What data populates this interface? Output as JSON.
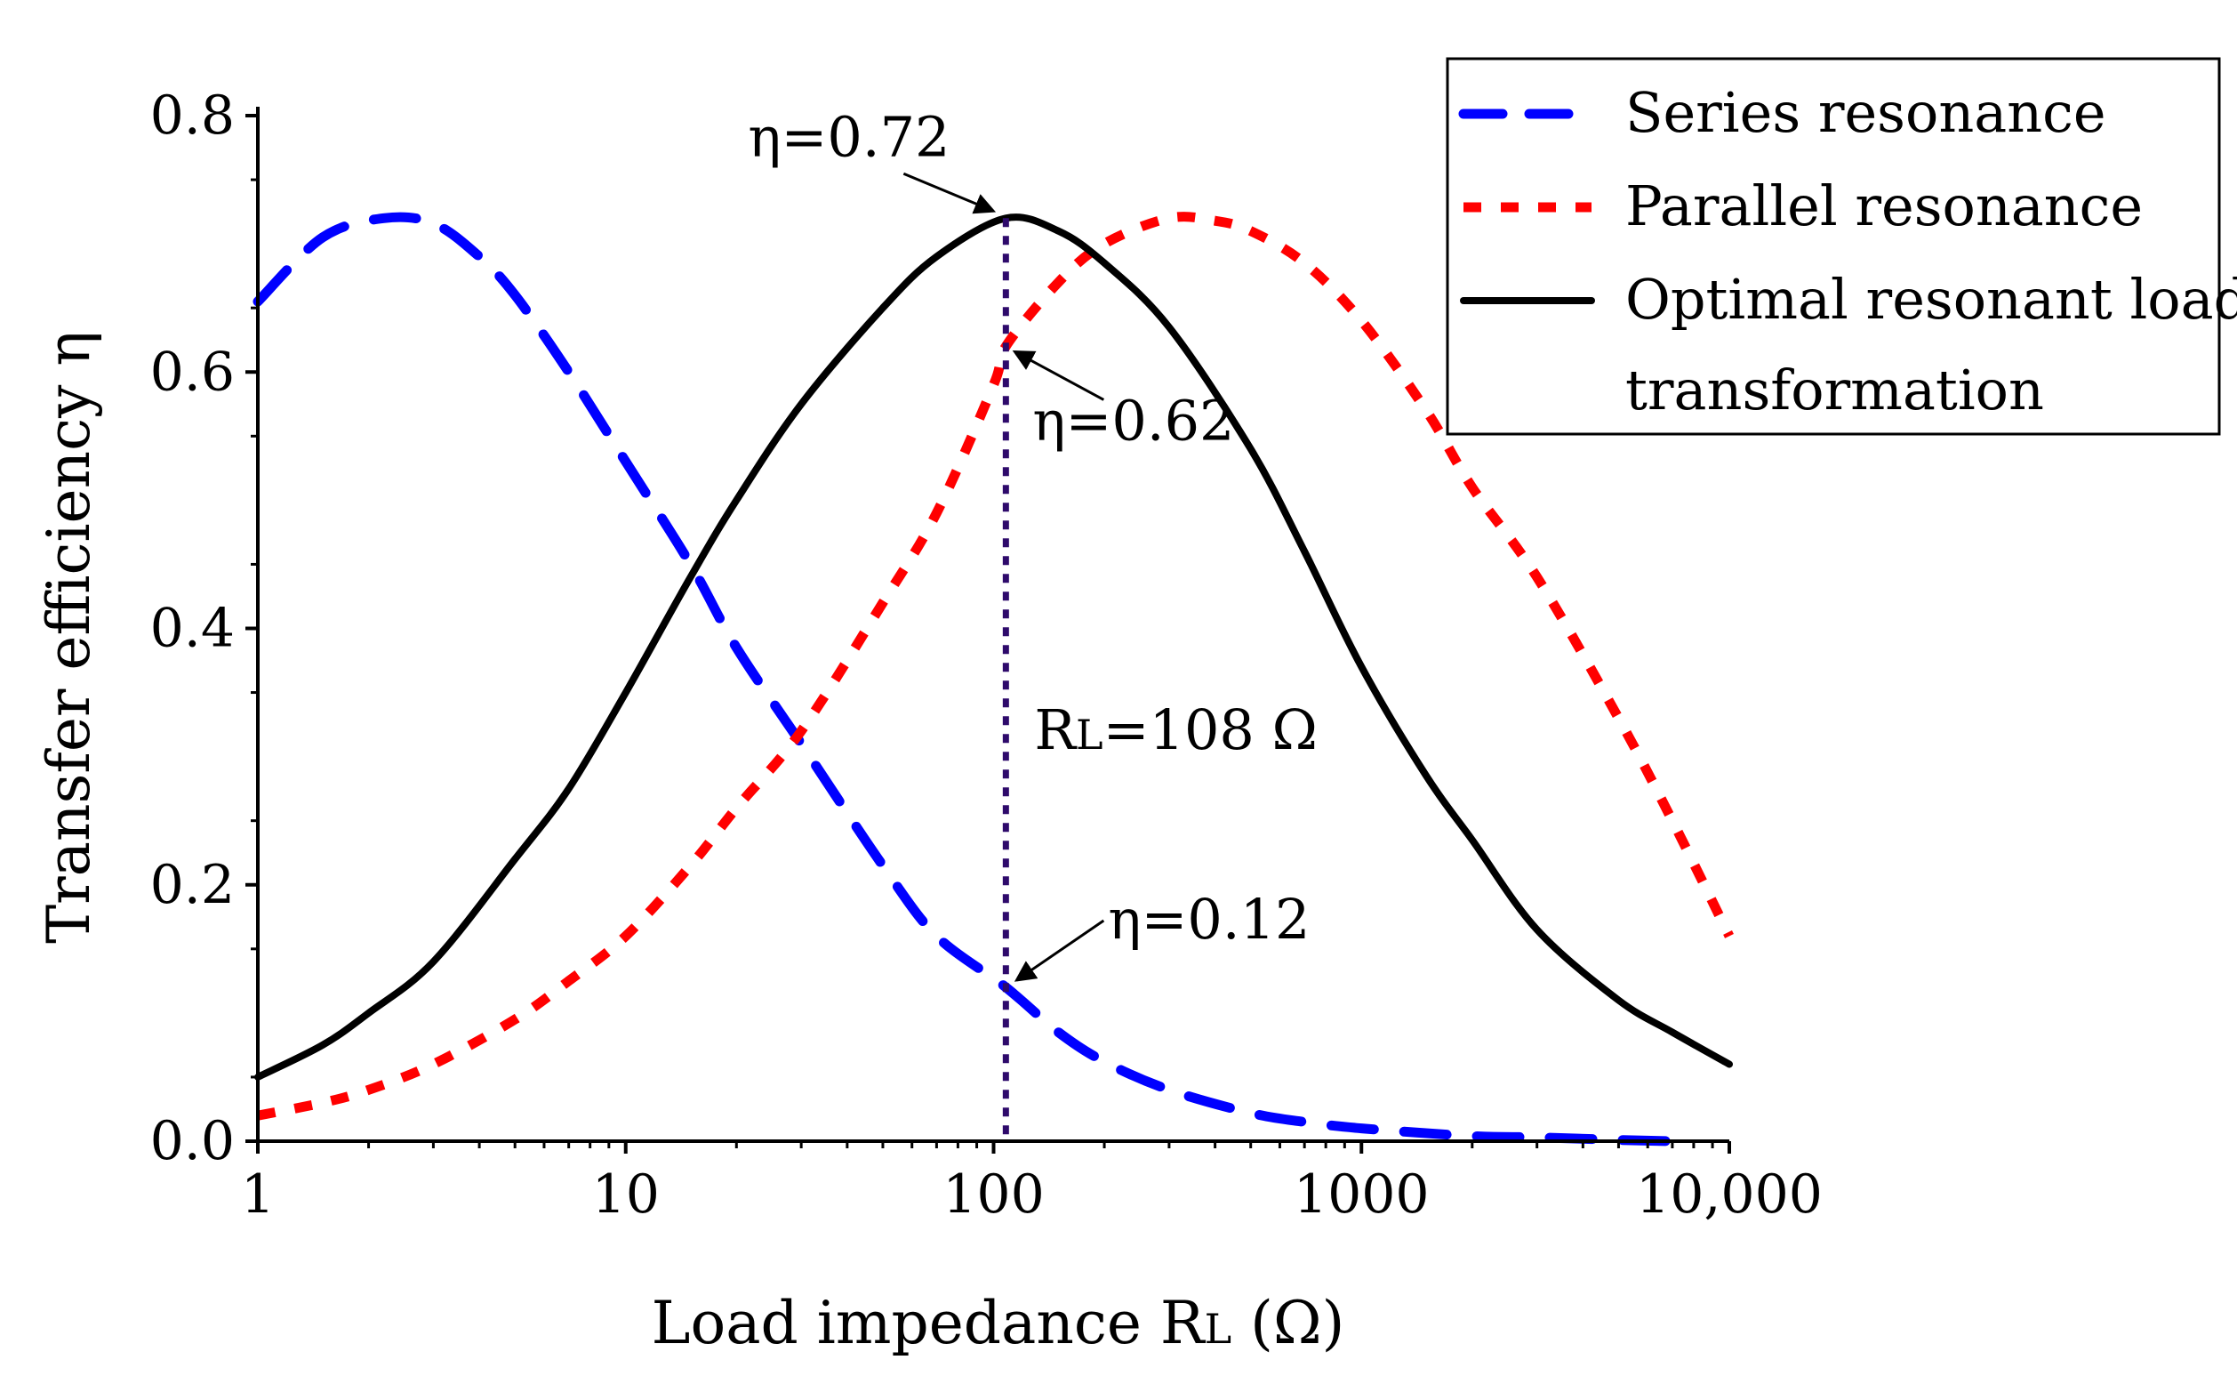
{
  "chart_data": {
    "type": "line",
    "title": "",
    "xlabel": {
      "main": "Load impedance R",
      "sub": "L",
      "tail": " (Ω)"
    },
    "ylabel": "Transfer efficiency η",
    "x_scale": "log",
    "xlim": [
      1,
      10000
    ],
    "ylim": [
      0,
      0.8
    ],
    "x_ticks": [
      {
        "value": 1,
        "label": "1"
      },
      {
        "value": 10,
        "label": "10"
      },
      {
        "value": 100,
        "label": "100"
      },
      {
        "value": 1000,
        "label": "1000"
      },
      {
        "value": 10000,
        "label": "10,000"
      }
    ],
    "y_ticks": [
      {
        "value": 0,
        "label": "0.0"
      },
      {
        "value": 0.2,
        "label": "0.2"
      },
      {
        "value": 0.4,
        "label": "0.4"
      },
      {
        "value": 0.6,
        "label": "0.6"
      },
      {
        "value": 0.8,
        "label": "0.8"
      }
    ],
    "grid": false,
    "legend_position": "top-right",
    "series": [
      {
        "name": "Series resonance",
        "color": "#0000ff",
        "style": "dashed",
        "x": [
          1,
          1.5,
          2.2,
          3,
          4,
          5,
          7,
          10,
          15,
          20,
          30,
          50,
          70,
          108,
          150,
          200,
          300,
          500,
          700,
          1000,
          2000,
          3000,
          5000,
          7000
        ],
        "y": [
          0.655,
          0.705,
          0.72,
          0.716,
          0.69,
          0.66,
          0.6,
          0.53,
          0.45,
          0.385,
          0.31,
          0.215,
          0.16,
          0.12,
          0.085,
          0.062,
          0.04,
          0.022,
          0.015,
          0.01,
          0.004,
          0.003,
          0.001,
          0.0
        ]
      },
      {
        "name": "Parallel resonance",
        "color": "#ff0000",
        "style": "dotted",
        "x": [
          1,
          1.5,
          2,
          3,
          5,
          7,
          10,
          15,
          20,
          30,
          50,
          70,
          100,
          108,
          150,
          200,
          300,
          400,
          500,
          700,
          1000,
          1500,
          2000,
          3000,
          5000,
          7000,
          10000
        ],
        "y": [
          0.02,
          0.03,
          0.04,
          0.06,
          0.095,
          0.125,
          0.16,
          0.215,
          0.26,
          0.32,
          0.42,
          0.49,
          0.59,
          0.62,
          0.67,
          0.7,
          0.72,
          0.718,
          0.71,
          0.685,
          0.64,
          0.57,
          0.51,
          0.44,
          0.33,
          0.25,
          0.16
        ]
      },
      {
        "name": "Optimal resonant load transformation",
        "name_lines": [
          "Optimal resonant load",
          "transformation"
        ],
        "color": "#000000",
        "style": "solid",
        "x": [
          1,
          1.5,
          2,
          3,
          5,
          7,
          10,
          15,
          20,
          30,
          50,
          70,
          108,
          150,
          200,
          300,
          500,
          700,
          1000,
          1500,
          2000,
          3000,
          5000,
          7000,
          10000
        ],
        "y": [
          0.05,
          0.075,
          0.1,
          0.14,
          0.22,
          0.275,
          0.35,
          0.44,
          0.5,
          0.575,
          0.65,
          0.69,
          0.72,
          0.71,
          0.685,
          0.635,
          0.54,
          0.46,
          0.37,
          0.285,
          0.235,
          0.165,
          0.11,
          0.085,
          0.06
        ]
      }
    ],
    "vertical_line": {
      "x": 108,
      "color": "#2e0a6b",
      "style": "dotted",
      "label_main": "R",
      "label_sub": "L",
      "label_tail": "=108 Ω",
      "label_y": 0.32
    },
    "annotations": [
      {
        "text": "η=0.72",
        "x": 108,
        "y": 0.72,
        "anchor": "top-left"
      },
      {
        "text": "η=0.62",
        "x": 108,
        "y": 0.62,
        "anchor": "bottom-right"
      },
      {
        "text": "η=0.12",
        "x": 108,
        "y": 0.12,
        "anchor": "top-right"
      }
    ]
  }
}
